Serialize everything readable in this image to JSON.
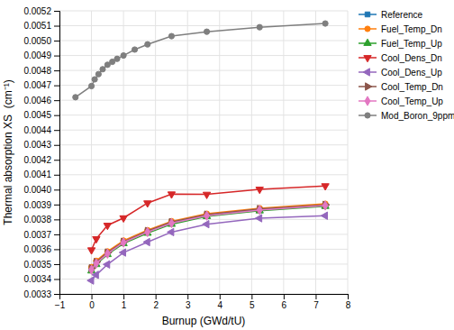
{
  "chart_data": {
    "type": "line",
    "xlabel": "Burnup (GWd/tU)",
    "ylabel": "Thermal absorption XS  (cm⁻¹)",
    "xlim": [
      -1,
      8
    ],
    "ylim": [
      0.0033,
      0.0052
    ],
    "xticks": [
      {
        "value": -1,
        "label": "−1"
      },
      0,
      1,
      2,
      3,
      4,
      5,
      6,
      7,
      8
    ],
    "yticks": [
      0.0033,
      0.0034,
      0.0035,
      0.0036,
      0.0037,
      0.0038,
      0.0039,
      {
        "value": 0.004,
        "label": "0.0040"
      },
      0.0041,
      0.0042,
      0.0043,
      0.0044,
      0.0045,
      0.0046,
      0.0047,
      0.0048,
      0.0049,
      {
        "value": 0.005,
        "label": "0.0050"
      },
      0.0051,
      0.0052
    ],
    "grid": true,
    "legend": "right",
    "series": [
      {
        "name": "Reference",
        "marker": "square",
        "x": [
          0,
          0.15,
          0.5,
          1.0,
          1.75,
          2.5,
          3.6,
          5.25,
          7.3
        ],
        "values": [
          0.003468,
          0.00351,
          0.003578,
          0.003648,
          0.003718,
          0.003778,
          0.003828,
          0.003868,
          0.003895
        ]
      },
      {
        "name": "Fuel_Temp_Dn",
        "marker": "circle",
        "x": [
          0,
          0.15,
          0.5,
          1.0,
          1.75,
          2.5,
          3.6,
          5.25,
          7.3
        ],
        "values": [
          0.00348,
          0.003522,
          0.003585,
          0.003658,
          0.003728,
          0.003788,
          0.003838,
          0.003875,
          0.003905
        ]
      },
      {
        "name": "Fuel_Temp_Up",
        "marker": "triangle-up",
        "x": [
          0,
          0.15,
          0.5,
          1.0,
          1.75,
          2.5,
          3.6,
          5.25,
          7.3
        ],
        "values": [
          0.003455,
          0.003498,
          0.003565,
          0.003638,
          0.003708,
          0.003768,
          0.00382,
          0.003858,
          0.003888
        ]
      },
      {
        "name": "Cool_Dens_Dn",
        "marker": "triangle-down",
        "x": [
          0,
          0.15,
          0.5,
          1.0,
          1.75,
          2.5,
          3.6,
          5.25,
          7.3
        ],
        "values": [
          0.003595,
          0.00367,
          0.00376,
          0.00381,
          0.00391,
          0.00397,
          0.003968,
          0.004002,
          0.004025
        ]
      },
      {
        "name": "Cool_Dens_Up",
        "marker": "triangle-left",
        "x": [
          0,
          0.15,
          0.5,
          1.0,
          1.75,
          2.5,
          3.6,
          5.25,
          7.3
        ],
        "values": [
          0.00339,
          0.003428,
          0.003498,
          0.003578,
          0.003648,
          0.003715,
          0.003768,
          0.003808,
          0.003825
        ]
      },
      {
        "name": "Cool_Temp_Dn",
        "marker": "triangle-right",
        "x": [
          0,
          0.15,
          0.5,
          1.0,
          1.75,
          2.5,
          3.6,
          5.25,
          7.3
        ],
        "values": [
          0.003472,
          0.003514,
          0.003578,
          0.00365,
          0.003722,
          0.003782,
          0.003832,
          0.00387,
          0.003898
        ]
      },
      {
        "name": "Cool_Temp_Up",
        "marker": "diamond",
        "x": [
          0,
          0.15,
          0.5,
          1.0,
          1.75,
          2.5,
          3.6,
          5.25,
          7.3
        ],
        "values": [
          0.003462,
          0.003505,
          0.00357,
          0.003645,
          0.003715,
          0.003775,
          0.003825,
          0.003863,
          0.003893
        ]
      },
      {
        "name": "Mod_Boron_9ppm",
        "marker": "circle",
        "x": [
          -0.5,
          0,
          0.1,
          0.22,
          0.35,
          0.5,
          0.65,
          0.8,
          1.0,
          1.35,
          1.75,
          2.5,
          3.6,
          5.25,
          7.3
        ],
        "values": [
          0.00462,
          0.004695,
          0.00474,
          0.004775,
          0.004808,
          0.004838,
          0.004858,
          0.004878,
          0.0049,
          0.00494,
          0.004975,
          0.00503,
          0.00506,
          0.00509,
          0.005115
        ]
      }
    ]
  }
}
